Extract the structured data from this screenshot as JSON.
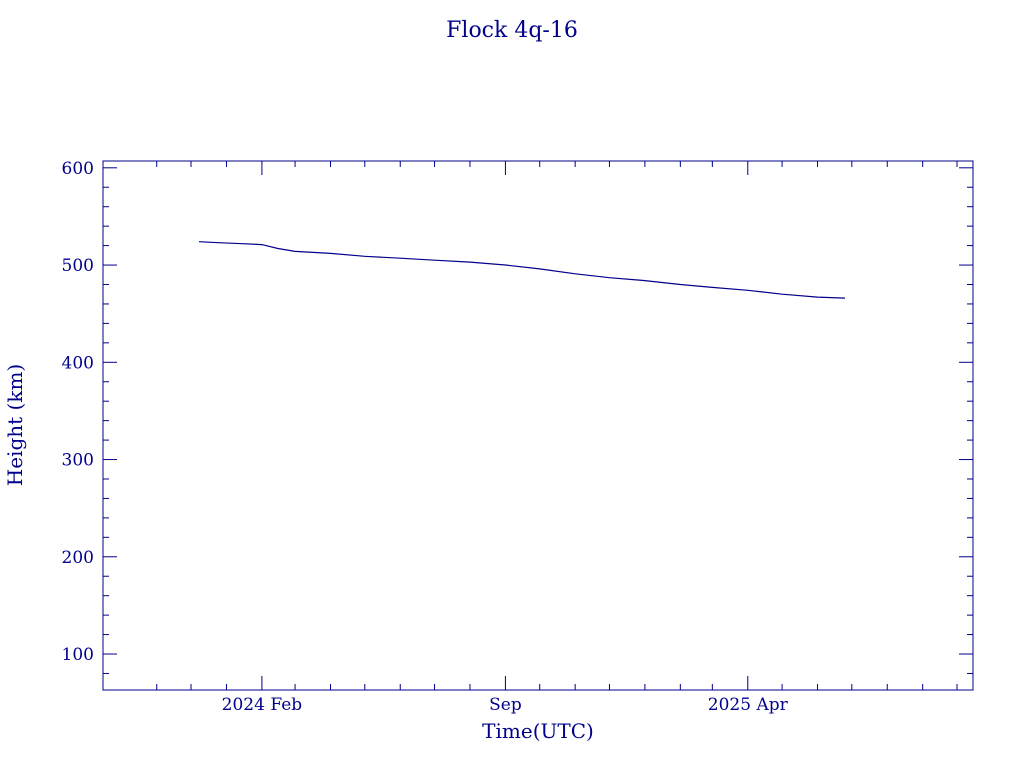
{
  "colors": {
    "ink": "#00008b",
    "background": "#ffffff"
  },
  "chart_data": {
    "type": "line",
    "title": "Flock 4q-16",
    "xlabel": "Time(UTC)",
    "ylabel": "Height (km)",
    "xlim": [
      "2023-09-15",
      "2025-10-15"
    ],
    "ylim": [
      63,
      607
    ],
    "x_ticks": [
      {
        "date": "2024-02-01",
        "label": "2024 Feb"
      },
      {
        "date": "2024-09-01",
        "label": "Sep"
      },
      {
        "date": "2025-04-01",
        "label": "2025 Apr"
      }
    ],
    "x_minor_ticks": [
      "2023-11-01",
      "2023-12-01",
      "2024-01-01",
      "2024-03-01",
      "2024-04-01",
      "2024-05-01",
      "2024-06-01",
      "2024-07-01",
      "2024-08-01",
      "2024-10-01",
      "2024-11-01",
      "2024-12-01",
      "2025-01-01",
      "2025-02-01",
      "2025-03-01",
      "2025-05-01",
      "2025-06-01",
      "2025-07-01",
      "2025-08-01",
      "2025-09-01",
      "2025-10-01"
    ],
    "y_ticks": [
      100,
      200,
      300,
      400,
      500,
      600
    ],
    "y_minor_step": 20,
    "grid": false,
    "series": [
      {
        "points": [
          [
            "2023-12-08",
            524
          ],
          [
            "2023-12-25",
            523
          ],
          [
            "2024-01-15",
            522
          ],
          [
            "2024-02-01",
            521
          ],
          [
            "2024-02-15",
            517
          ],
          [
            "2024-03-01",
            514
          ],
          [
            "2024-04-01",
            512
          ],
          [
            "2024-05-01",
            509
          ],
          [
            "2024-06-01",
            507
          ],
          [
            "2024-07-01",
            505
          ],
          [
            "2024-08-01",
            503
          ],
          [
            "2024-09-01",
            500
          ],
          [
            "2024-10-01",
            496
          ],
          [
            "2024-11-01",
            491
          ],
          [
            "2024-12-01",
            487
          ],
          [
            "2025-01-01",
            484
          ],
          [
            "2025-02-01",
            480
          ],
          [
            "2025-03-01",
            477
          ],
          [
            "2025-04-01",
            474
          ],
          [
            "2025-05-01",
            470
          ],
          [
            "2025-06-01",
            467
          ],
          [
            "2025-06-25",
            466
          ]
        ]
      }
    ]
  }
}
